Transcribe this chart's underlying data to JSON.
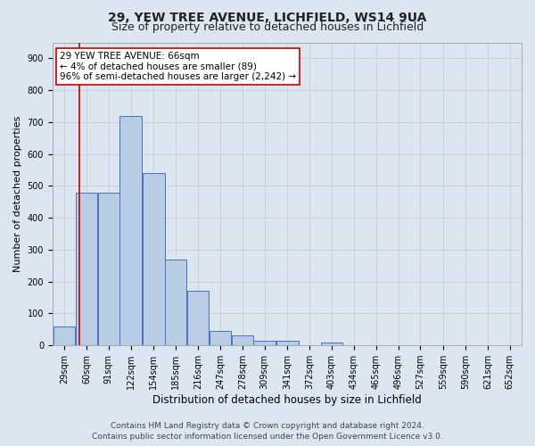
{
  "title1": "29, YEW TREE AVENUE, LICHFIELD, WS14 9UA",
  "title2": "Size of property relative to detached houses in Lichfield",
  "xlabel": "Distribution of detached houses by size in Lichfield",
  "ylabel": "Number of detached properties",
  "bar_color": "#b8cce4",
  "bar_edge_color": "#4472c4",
  "categories": [
    "29sqm",
    "60sqm",
    "91sqm",
    "122sqm",
    "154sqm",
    "185sqm",
    "216sqm",
    "247sqm",
    "278sqm",
    "309sqm",
    "341sqm",
    "372sqm",
    "403sqm",
    "434sqm",
    "465sqm",
    "496sqm",
    "527sqm",
    "559sqm",
    "590sqm",
    "621sqm",
    "652sqm"
  ],
  "bar_values": [
    60,
    480,
    480,
    720,
    540,
    270,
    170,
    45,
    30,
    15,
    15,
    0,
    10,
    0,
    0,
    0,
    0,
    0,
    0,
    0,
    0
  ],
  "bin_width": 31,
  "bin_starts": [
    29,
    60,
    91,
    122,
    154,
    185,
    216,
    247,
    278,
    309,
    341,
    372,
    403,
    434,
    465,
    496,
    527,
    559,
    590,
    621,
    652
  ],
  "property_size": 66,
  "property_line_color": "#cc0000",
  "annotation_text": "29 YEW TREE AVENUE: 66sqm\n← 4% of detached houses are smaller (89)\n96% of semi-detached houses are larger (2,242) →",
  "annotation_box_color": "#ffffff",
  "annotation_box_edge_color": "#cc0000",
  "ylim": [
    0,
    950
  ],
  "yticks": [
    0,
    100,
    200,
    300,
    400,
    500,
    600,
    700,
    800,
    900
  ],
  "grid_color": "#cccccc",
  "background_color": "#dce6f0",
  "footer_line1": "Contains HM Land Registry data © Crown copyright and database right 2024.",
  "footer_line2": "Contains public sector information licensed under the Open Government Licence v3.0.",
  "title1_fontsize": 10,
  "title2_fontsize": 9,
  "xlabel_fontsize": 8.5,
  "ylabel_fontsize": 8,
  "tick_fontsize": 7,
  "annot_fontsize": 7.5,
  "footer_fontsize": 6.5
}
